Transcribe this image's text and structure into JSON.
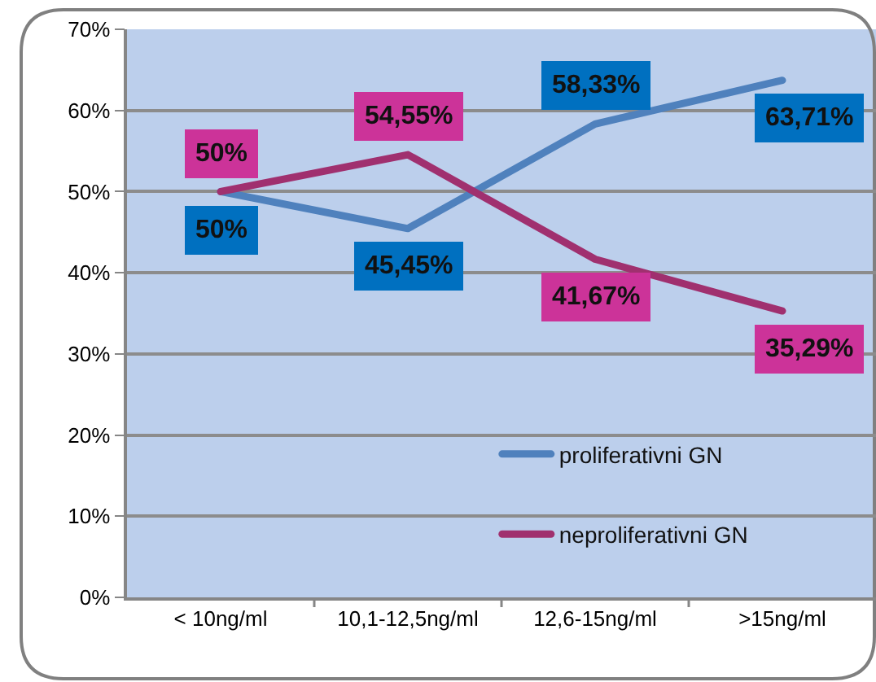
{
  "chart_data": {
    "type": "line",
    "categories": [
      "< 10ng/ml",
      "10,1-12,5ng/ml",
      "12,6-15ng/ml",
      ">15ng/ml"
    ],
    "series": [
      {
        "name": "proliferativni GN",
        "color": "#4f81bd",
        "values": [
          50,
          45.45,
          58.33,
          63.71
        ],
        "value_labels": [
          "50%",
          "45,45%",
          "58,33%",
          "63,71%"
        ]
      },
      {
        "name": "neproliferativni GN",
        "color": "#a0306f",
        "values": [
          50,
          54.55,
          41.67,
          35.29
        ],
        "value_labels": [
          "50%",
          "54,55%",
          "41,67%",
          "35,29%"
        ]
      }
    ],
    "ylim": [
      0,
      70
    ],
    "yticks": [
      {
        "value": 0,
        "label": "0%"
      },
      {
        "value": 10,
        "label": "10%"
      },
      {
        "value": 20,
        "label": "20%"
      },
      {
        "value": 30,
        "label": "30%"
      },
      {
        "value": 40,
        "label": "40%"
      },
      {
        "value": 50,
        "label": "50%"
      },
      {
        "value": 60,
        "label": "60%"
      },
      {
        "value": 70,
        "label": "70%"
      }
    ],
    "grid": "y",
    "legend": "bottom right"
  }
}
